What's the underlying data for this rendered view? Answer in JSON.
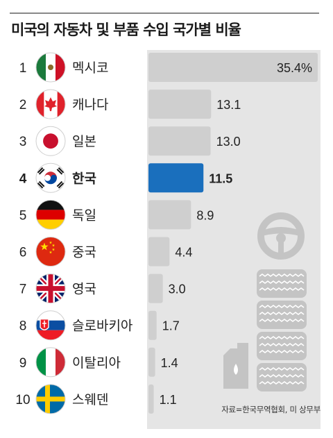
{
  "title": "미국의 자동차 및 부품 수입 국가별 비율",
  "source": "자료=한국무역협회, 미 상무부",
  "colors": {
    "bar": "#cfcfcf",
    "highlight": "#1a6fbd",
    "text": "#222222"
  },
  "chart_data": {
    "type": "bar",
    "orientation": "horizontal",
    "unit": "%",
    "ranks": [
      "1",
      "2",
      "3",
      "4",
      "5",
      "6",
      "7",
      "8",
      "9",
      "10"
    ],
    "categories": [
      "멕시코",
      "캐나다",
      "일본",
      "한국",
      "독일",
      "중국",
      "영국",
      "슬로바키아",
      "이탈리아",
      "스웨덴"
    ],
    "values": [
      35.4,
      13.1,
      13.0,
      11.5,
      8.9,
      4.4,
      3.0,
      1.7,
      1.4,
      1.1
    ],
    "value_labels": [
      "35.4%",
      "13.1",
      "13.0",
      "11.5",
      "8.9",
      "4.4",
      "3.0",
      "1.7",
      "1.4",
      "1.1"
    ],
    "flags": [
      "mexico-flag",
      "canada-flag",
      "japan-flag",
      "korea-flag",
      "germany-flag",
      "china-flag",
      "uk-flag",
      "slovakia-flag",
      "italy-flag",
      "sweden-flag"
    ],
    "highlight": "한국",
    "xlim": [
      0,
      35.4
    ],
    "decorations": [
      "steering-wheel-icon",
      "tire-stack-icon",
      "oil-can-icon"
    ]
  }
}
